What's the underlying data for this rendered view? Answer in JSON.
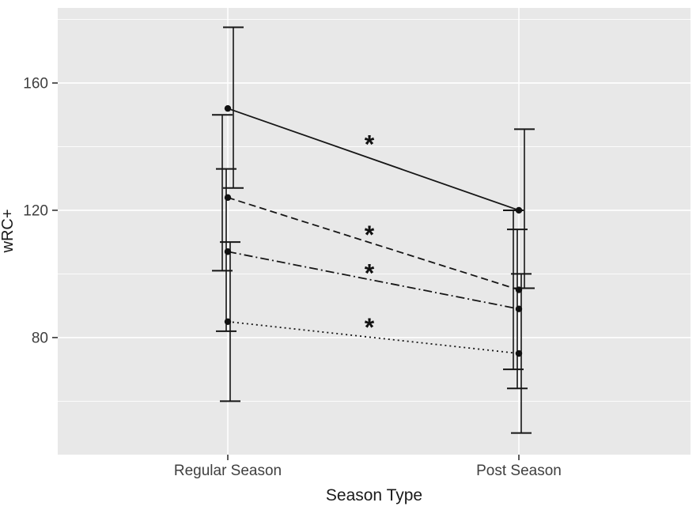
{
  "chart_data": {
    "type": "line",
    "title": "",
    "xlabel": "Season Type",
    "ylabel": "wRC+",
    "categories": [
      "Regular Season",
      "Post Season"
    ],
    "yticks": [
      160,
      120,
      80
    ],
    "ytick_labels": [
      "160",
      "120",
      "80"
    ],
    "yminor": [
      180,
      140,
      100,
      60
    ],
    "ylim": [
      43.2,
      183.6
    ],
    "grid": "grey panel, white major+minor horizontal gridlines, white vertical gridline at each category",
    "legend": "none",
    "significance_marker": "*",
    "series": [
      {
        "name": "series-1-solid",
        "linestyle": "solid",
        "values": [
          152,
          120
        ],
        "ci_low": [
          127,
          95.5
        ],
        "ci_high": [
          177.5,
          145.5
        ],
        "significant": true,
        "asterisk_y": 142
      },
      {
        "name": "series-2-dashed",
        "linestyle": "dashed",
        "values": [
          124,
          95
        ],
        "ci_low": [
          101,
          70
        ],
        "ci_high": [
          150,
          120
        ],
        "significant": true,
        "asterisk_y": 113.5
      },
      {
        "name": "series-3-dashdot",
        "linestyle": "dashdot",
        "values": [
          107,
          89
        ],
        "ci_low": [
          82,
          64
        ],
        "ci_high": [
          133,
          114
        ],
        "significant": true,
        "asterisk_y": 101.5
      },
      {
        "name": "series-4-dotted",
        "linestyle": "dotted",
        "values": [
          85,
          75
        ],
        "ci_low": [
          60,
          50
        ],
        "ci_high": [
          110,
          100
        ],
        "significant": true,
        "asterisk_y": 84.5
      }
    ],
    "colors": {
      "panel_bg": "#e8e8e8",
      "gridline": "#ffffff",
      "line": "#161616",
      "point": "#111111",
      "axis_text": "#3f3f3f",
      "axis_title": "#1a1a1a",
      "tick_mark": "#333333",
      "asterisk": "#111111"
    }
  }
}
